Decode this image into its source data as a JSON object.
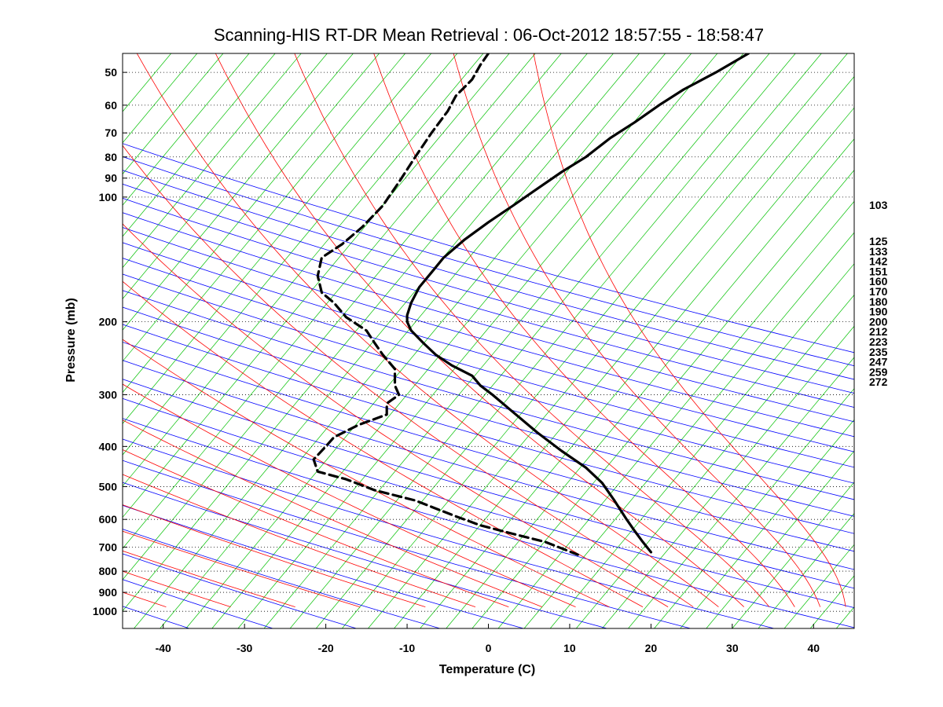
{
  "chart_data": {
    "type": "line",
    "title": "Scanning-HIS RT-DR Mean Retrieval : 06-Oct-2012 18:57:55 - 18:58:47",
    "xlabel": "Temperature (C)",
    "ylabel": "Pressure (mb)",
    "xlim": [
      -45,
      45
    ],
    "ylim": [
      1100,
      45
    ],
    "y_scale": "log",
    "x_ticks": [
      -40,
      -30,
      -20,
      -10,
      0,
      10,
      20,
      30,
      40
    ],
    "y_ticks": [
      50,
      60,
      70,
      80,
      90,
      100,
      200,
      300,
      400,
      500,
      600,
      700,
      800,
      900,
      1000
    ],
    "right_axis_labels": [
      "103",
      "125",
      "133",
      "142",
      "151",
      "160",
      "170",
      "180",
      "190",
      "200",
      "212",
      "223",
      "235",
      "247",
      "259",
      "272"
    ],
    "grid": "dotted horizontal at pressure ticks",
    "background_lines": {
      "dry_adiabats_color": "#0000ff",
      "moist_adiabats_color": "#ff0000",
      "mixing_ratio_color": "#00c000"
    },
    "series": [
      {
        "style": "solid",
        "color": "#000000",
        "points": [
          [
            32.0,
            45
          ],
          [
            28.0,
            50
          ],
          [
            24.0,
            55
          ],
          [
            21.0,
            60
          ],
          [
            18.0,
            66
          ],
          [
            15.0,
            72
          ],
          [
            12.0,
            80
          ],
          [
            9.0,
            87
          ],
          [
            5.5,
            97
          ],
          [
            3.0,
            105
          ],
          [
            0.0,
            115
          ],
          [
            -3.0,
            127
          ],
          [
            -5.5,
            140
          ],
          [
            -7.0,
            152
          ],
          [
            -8.5,
            165
          ],
          [
            -9.5,
            180
          ],
          [
            -10.0,
            193
          ],
          [
            -10.0,
            200
          ],
          [
            -9.5,
            210
          ],
          [
            -8.0,
            225
          ],
          [
            -6.5,
            240
          ],
          [
            -4.5,
            255
          ],
          [
            -2.0,
            270
          ],
          [
            -1.0,
            285
          ],
          [
            0.5,
            300
          ],
          [
            3.0,
            330
          ],
          [
            6.0,
            370
          ],
          [
            9.0,
            410
          ],
          [
            12.0,
            450
          ],
          [
            14.0,
            490
          ],
          [
            15.5,
            540
          ],
          [
            17.0,
            600
          ],
          [
            18.0,
            640
          ],
          [
            19.0,
            680
          ],
          [
            20.0,
            720
          ]
        ]
      },
      {
        "style": "dashed",
        "color": "#000000",
        "points": [
          [
            0.0,
            45
          ],
          [
            -1.0,
            48
          ],
          [
            -2.0,
            52
          ],
          [
            -4.0,
            57
          ],
          [
            -5.0,
            62
          ],
          [
            -7.0,
            70
          ],
          [
            -9.0,
            80
          ],
          [
            -11.0,
            92
          ],
          [
            -13.0,
            105
          ],
          [
            -15.5,
            118
          ],
          [
            -18.0,
            130
          ],
          [
            -20.5,
            140
          ],
          [
            -21.0,
            155
          ],
          [
            -20.5,
            170
          ],
          [
            -19.0,
            180
          ],
          [
            -17.5,
            195
          ],
          [
            -15.0,
            210
          ],
          [
            -14.0,
            225
          ],
          [
            -13.0,
            240
          ],
          [
            -11.5,
            260
          ],
          [
            -11.5,
            285
          ],
          [
            -11.0,
            300
          ],
          [
            -12.5,
            315
          ],
          [
            -12.5,
            335
          ],
          [
            -16.0,
            355
          ],
          [
            -19.0,
            380
          ],
          [
            -20.0,
            400
          ],
          [
            -21.5,
            430
          ],
          [
            -21.0,
            460
          ],
          [
            -17.5,
            480
          ],
          [
            -14.0,
            510
          ],
          [
            -9.0,
            540
          ],
          [
            -4.0,
            590
          ],
          [
            -1.0,
            620
          ],
          [
            3.0,
            650
          ],
          [
            7.0,
            680
          ],
          [
            11.0,
            730
          ]
        ]
      }
    ]
  }
}
